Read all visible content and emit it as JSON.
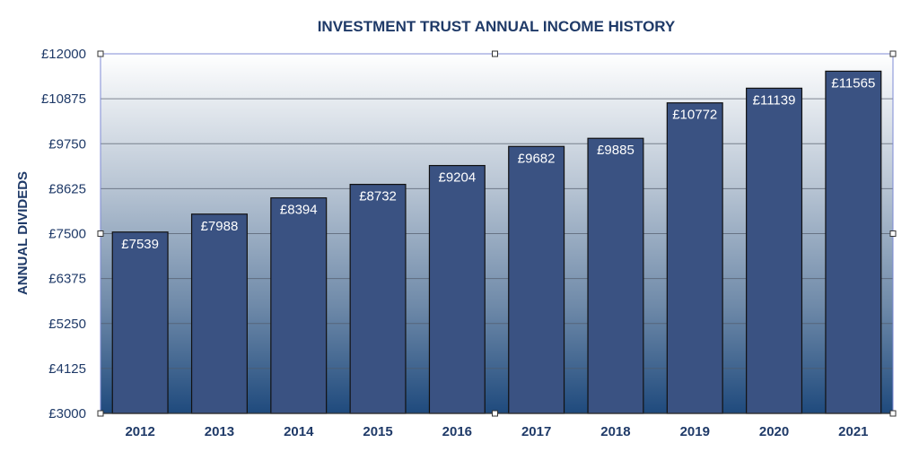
{
  "chart_data": {
    "type": "bar",
    "title": "INVESTMENT TRUST ANNUAL INCOME HISTORY",
    "xlabel": "",
    "ylabel": "ANNUAL DIVIDEDS",
    "categories": [
      "2012",
      "2013",
      "2014",
      "2015",
      "2016",
      "2017",
      "2018",
      "2019",
      "2020",
      "2021"
    ],
    "values": [
      7539,
      7988,
      8394,
      8732,
      9204,
      9682,
      9885,
      10772,
      11139,
      11565
    ],
    "data_labels": [
      "£7539",
      "£7988",
      "£8394",
      "£8732",
      "£9204",
      "£9682",
      "£9885",
      "£10772",
      "£11139",
      "£11565"
    ],
    "ylim": [
      3000,
      12000
    ],
    "yticks": [
      3000,
      4125,
      5250,
      6375,
      7500,
      8625,
      9750,
      10875,
      12000
    ],
    "ytick_labels": [
      "£3000",
      "£4125",
      "£5250",
      "£6375",
      "£7500",
      "£8625",
      "£9750",
      "£10875",
      "£12000"
    ],
    "grid": true,
    "legend": "none",
    "colors": {
      "bar_fill": "#3a5282",
      "bar_stroke": "#111111",
      "text": "#1f3a68",
      "plot_bg_top": "#ffffff",
      "plot_bg_bottom": "#1f4a7d",
      "grid": "#505a6a",
      "data_label": "#ffffff"
    }
  }
}
